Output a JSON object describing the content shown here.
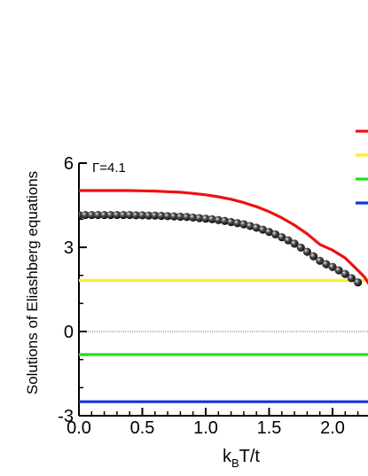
{
  "chart_data": {
    "type": "line",
    "title": "",
    "xlabel": {
      "main": "k",
      "sub": "B",
      "rest": "T/t"
    },
    "ylabel": "Solutions of Eliashberg equations",
    "xlim": [
      0.0,
      2.3
    ],
    "ylim": [
      -3,
      6
    ],
    "x_ticks": [
      0.0,
      0.5,
      1.0,
      1.5,
      2.0
    ],
    "x_tick_labels": [
      "0.0",
      "0.5",
      "1.0",
      "1.5",
      "2.0"
    ],
    "y_ticks": [
      -3,
      0,
      3,
      6
    ],
    "y_tick_labels": [
      "-3",
      "0",
      "3",
      "6"
    ],
    "annotation": "Γ=4.1",
    "grid": false,
    "legend_placement": "top-right (labels cropped)",
    "reference_line": {
      "y": 0,
      "style": "dotted",
      "color": "#555555"
    },
    "series": [
      {
        "style": "line",
        "color": "#ee1111",
        "x": [
          0.0,
          0.1,
          0.2,
          0.3,
          0.4,
          0.5,
          0.6,
          0.7,
          0.8,
          0.9,
          1.0,
          1.1,
          1.2,
          1.3,
          1.4,
          1.5,
          1.6,
          1.7,
          1.8,
          1.9,
          2.0,
          2.1,
          2.2,
          2.25,
          2.28,
          2.3
        ],
        "y": [
          5.02,
          5.02,
          5.02,
          5.02,
          5.02,
          5.01,
          5.0,
          4.98,
          4.96,
          4.92,
          4.87,
          4.8,
          4.71,
          4.59,
          4.45,
          4.27,
          4.05,
          3.79,
          3.48,
          3.1,
          2.9,
          2.62,
          2.18,
          1.95,
          1.75,
          1.6
        ]
      },
      {
        "style": "scatter",
        "color": "#111111",
        "x": [
          0.0,
          0.05,
          0.1,
          0.15,
          0.2,
          0.25,
          0.3,
          0.35,
          0.4,
          0.45,
          0.5,
          0.55,
          0.6,
          0.65,
          0.7,
          0.75,
          0.8,
          0.85,
          0.9,
          0.95,
          1.0,
          1.05,
          1.1,
          1.15,
          1.2,
          1.25,
          1.3,
          1.35,
          1.4,
          1.45,
          1.5,
          1.55,
          1.6,
          1.65,
          1.7,
          1.75,
          1.8,
          1.85,
          1.9,
          1.95,
          2.0,
          2.05,
          2.1,
          2.15,
          2.2
        ],
        "y": [
          4.15,
          4.15,
          4.15,
          4.15,
          4.15,
          4.15,
          4.15,
          4.15,
          4.15,
          4.14,
          4.14,
          4.13,
          4.13,
          4.12,
          4.11,
          4.1,
          4.09,
          4.08,
          4.06,
          4.04,
          4.02,
          4.0,
          3.97,
          3.94,
          3.9,
          3.86,
          3.82,
          3.76,
          3.7,
          3.63,
          3.55,
          3.46,
          3.36,
          3.25,
          3.13,
          2.99,
          2.84,
          2.68,
          2.52,
          2.4,
          2.3,
          2.18,
          2.05,
          1.9,
          1.75
        ]
      },
      {
        "style": "line",
        "color": "#ffee22",
        "x": [
          0.0,
          2.3
        ],
        "y": [
          1.82,
          1.82
        ]
      },
      {
        "style": "line",
        "color": "#22dd22",
        "x": [
          0.0,
          2.3
        ],
        "y": [
          -0.82,
          -0.82
        ]
      },
      {
        "style": "line",
        "color": "#1133dd",
        "x": [
          0.0,
          2.3
        ],
        "y": [
          -2.5,
          -2.5
        ]
      }
    ],
    "legend_swatches": [
      "#ee1111",
      "#ffee22",
      "#22dd22",
      "#1133dd"
    ]
  }
}
